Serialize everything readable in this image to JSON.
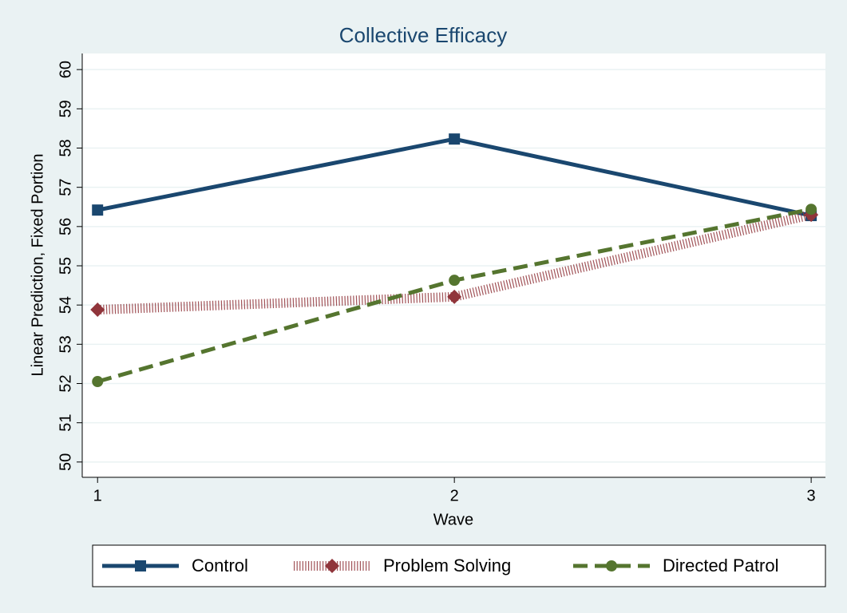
{
  "chart_data": {
    "type": "line",
    "title": "Collective Efficacy",
    "x_label": "Wave",
    "y_label": "Linear Prediction, Fixed Portion",
    "x": [
      1,
      2,
      3
    ],
    "series": [
      {
        "name": "Control",
        "color": "#1a476f",
        "style": "solid",
        "marker": "square",
        "values": [
          56.42,
          58.23,
          56.28
        ]
      },
      {
        "name": "Problem Solving",
        "color": "#90353b",
        "style": "hatched",
        "marker": "diamond",
        "values": [
          53.88,
          54.21,
          56.3
        ]
      },
      {
        "name": "Directed Patrol",
        "color": "#55752f",
        "style": "dashed",
        "marker": "circle",
        "values": [
          52.05,
          54.63,
          56.44
        ]
      }
    ],
    "xlim": [
      0.957,
      3.04
    ],
    "xticks": [
      1,
      2,
      3
    ],
    "ylim": [
      49.61,
      60.41
    ],
    "yticks": [
      50,
      51,
      52,
      53,
      54,
      55,
      56,
      57,
      58,
      59,
      60
    ],
    "grid": true,
    "legend": "bottom"
  }
}
